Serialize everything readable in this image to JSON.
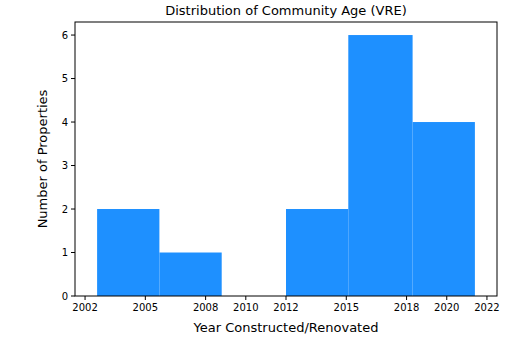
{
  "chart_data": {
    "type": "histogram",
    "title": "Distribution of Community Age (VRE)",
    "x_label": "Year Constructed/Renovated",
    "y_label": "Number of Properties",
    "bins": [
      2002.6,
      2005.7,
      2008.8,
      2012.0,
      2015.1,
      2018.3,
      2021.4
    ],
    "counts": [
      2,
      1,
      0,
      2,
      6,
      4
    ],
    "color": "#1e90ff",
    "xlim": [
      2001.5,
      2022.5
    ],
    "xticks": [
      2002,
      2005,
      2008,
      2010,
      2012,
      2015,
      2018,
      2020,
      2022
    ],
    "ylim": [
      0,
      6.3
    ],
    "yticks": [
      0,
      1,
      2,
      3,
      4,
      5,
      6
    ],
    "grid": false
  }
}
